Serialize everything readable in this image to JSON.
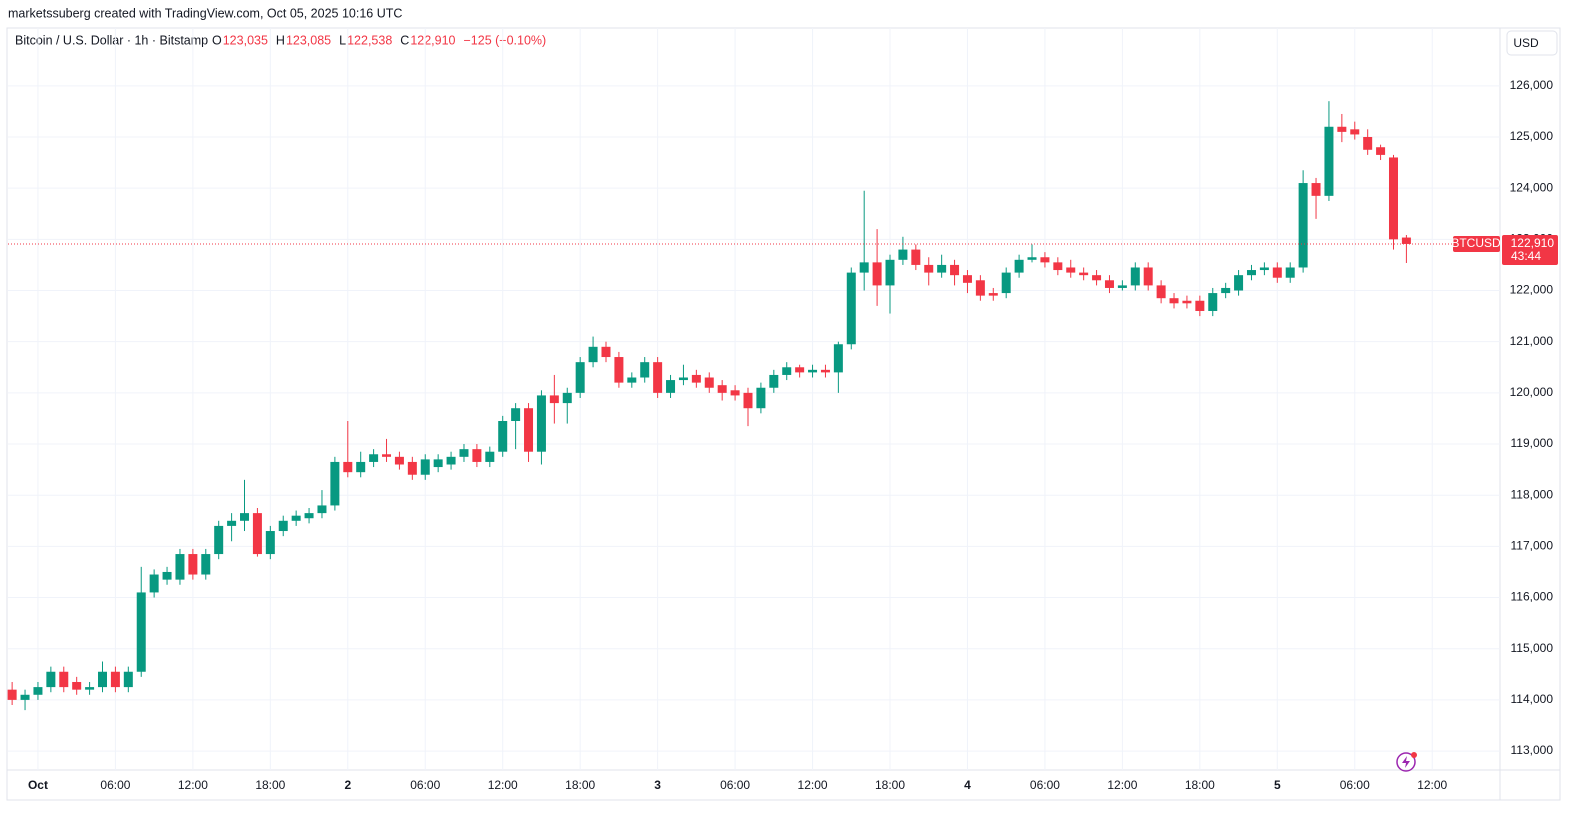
{
  "chart_data": {
    "type": "candlestick",
    "title": "marketssuberg created with TradingView.com, Oct 05, 2025 10:16 UTC",
    "symbol": "Bitcoin / U.S. Dollar · 1h · Bitstamp",
    "ohlc_legend": [
      {
        "key": "O",
        "text": "123,035"
      },
      {
        "key": "H",
        "text": "123,085"
      },
      {
        "key": "L",
        "text": "122,538"
      },
      {
        "key": "C",
        "text": "122,910"
      },
      {
        "key": "",
        "text": "−125 (−0.10%)"
      }
    ],
    "currency": "USD",
    "symbol_tag": "BTCUSD",
    "last_price": {
      "value": 122910,
      "label": "122,910"
    },
    "countdown": "43:44",
    "up_color": "#089981",
    "down_color": "#f23645",
    "grid": true,
    "xlim": [
      -0.32,
      115.25
    ],
    "xticks": [
      {
        "value": 2,
        "label": "Oct"
      },
      {
        "value": 8,
        "label": "06:00"
      },
      {
        "value": 14,
        "label": "12:00"
      },
      {
        "value": 20,
        "label": "18:00"
      },
      {
        "value": 26,
        "label": "2"
      },
      {
        "value": 32,
        "label": "06:00"
      },
      {
        "value": 38,
        "label": "12:00"
      },
      {
        "value": 44,
        "label": "18:00"
      },
      {
        "value": 50,
        "label": "3"
      },
      {
        "value": 56,
        "label": "06:00"
      },
      {
        "value": 62,
        "label": "12:00"
      },
      {
        "value": 68,
        "label": "18:00"
      },
      {
        "value": 74,
        "label": "4"
      },
      {
        "value": 80,
        "label": "06:00"
      },
      {
        "value": 86,
        "label": "12:00"
      },
      {
        "value": 92,
        "label": "18:00"
      },
      {
        "value": 98,
        "label": "5"
      },
      {
        "value": 104,
        "label": "06:00"
      },
      {
        "value": 110,
        "label": "12:00"
      }
    ],
    "ylim": [
      112630,
      127130
    ],
    "yticks": [
      {
        "value": 113000,
        "label": "113,000"
      },
      {
        "value": 114000,
        "label": "114,000"
      },
      {
        "value": 115000,
        "label": "115,000"
      },
      {
        "value": 116000,
        "label": "116,000"
      },
      {
        "value": 117000,
        "label": "117,000"
      },
      {
        "value": 118000,
        "label": "118,000"
      },
      {
        "value": 119000,
        "label": "119,000"
      },
      {
        "value": 120000,
        "label": "120,000"
      },
      {
        "value": 121000,
        "label": "121,000"
      },
      {
        "value": 122000,
        "label": "122,000"
      },
      {
        "value": 123000,
        "label": "123,000"
      },
      {
        "value": 124000,
        "label": "124,000"
      },
      {
        "value": 125000,
        "label": "125,000"
      },
      {
        "value": 126000,
        "label": "126,000"
      }
    ],
    "open": [
      114200,
      114000,
      114100,
      114250,
      114550,
      114350,
      114200,
      114250,
      114550,
      114250,
      114550,
      116100,
      116350,
      116350,
      116850,
      116450,
      116850,
      117400,
      117500,
      117650,
      116850,
      117300,
      117500,
      117550,
      117650,
      117800,
      118650,
      118450,
      118650,
      118800,
      118750,
      118650,
      118400,
      118550,
      118600,
      118750,
      118900,
      118650,
      118850,
      119450,
      119700,
      118850,
      119950,
      119800,
      120000,
      120600,
      120900,
      120700,
      120200,
      120300,
      120600,
      120000,
      120250,
      120350,
      120300,
      120150,
      120050,
      120000,
      119700,
      120100,
      120350,
      120500,
      120400,
      120450,
      120400,
      120950,
      122350,
      122550,
      122100,
      122600,
      122800,
      122500,
      122350,
      122500,
      122300,
      122200,
      121950,
      121950,
      122350,
      122600,
      122650,
      122550,
      122450,
      122350,
      122300,
      122200,
      122050,
      122100,
      122450,
      122100,
      121850,
      121800,
      121800,
      121600,
      121950,
      122000,
      122300,
      122400,
      122450,
      122250,
      122450,
      124100,
      123850,
      125200,
      125150,
      125000,
      124800,
      124600,
      123035
    ],
    "high": [
      114350,
      114200,
      114350,
      114650,
      114650,
      114450,
      114350,
      114750,
      114650,
      114650,
      116600,
      116550,
      116600,
      116950,
      116950,
      116950,
      117500,
      117650,
      118300,
      117750,
      117400,
      117600,
      117700,
      117750,
      118100,
      118750,
      119450,
      118850,
      118900,
      119100,
      118850,
      118750,
      118800,
      118800,
      118850,
      119000,
      119000,
      118950,
      119550,
      119800,
      119800,
      120050,
      120350,
      120100,
      120700,
      121100,
      121000,
      120800,
      120400,
      120700,
      120700,
      120350,
      120550,
      120450,
      120400,
      120250,
      120150,
      120100,
      120200,
      120450,
      120600,
      120550,
      120550,
      120550,
      121000,
      122450,
      123950,
      123200,
      122700,
      123050,
      122900,
      122650,
      122700,
      122600,
      122400,
      122300,
      122050,
      122450,
      122700,
      122900,
      122750,
      122650,
      122600,
      122450,
      122400,
      122300,
      122200,
      122550,
      122550,
      122200,
      121950,
      121900,
      121900,
      122050,
      122150,
      122400,
      122500,
      122550,
      122550,
      122550,
      124350,
      124200,
      125700,
      125450,
      125300,
      125150,
      124850,
      124650,
      123085
    ],
    "low": [
      113900,
      113800,
      114000,
      114150,
      114150,
      114100,
      114100,
      114150,
      114150,
      114150,
      114450,
      116000,
      116250,
      116250,
      116350,
      116350,
      116750,
      117100,
      117300,
      116800,
      116750,
      117200,
      117400,
      117450,
      117550,
      117700,
      118350,
      118350,
      118550,
      118650,
      118500,
      118300,
      118300,
      118450,
      118500,
      118650,
      118550,
      118550,
      118750,
      118900,
      118650,
      118600,
      119400,
      119400,
      119900,
      120500,
      120600,
      120100,
      120100,
      120200,
      119900,
      119900,
      120150,
      120100,
      120000,
      119850,
      119850,
      119350,
      119600,
      120000,
      120250,
      120300,
      120300,
      120300,
      120000,
      120850,
      122000,
      121700,
      121550,
      122500,
      122400,
      122100,
      122250,
      122100,
      121950,
      121800,
      121800,
      121850,
      122250,
      122550,
      122450,
      122300,
      122250,
      122200,
      122100,
      121950,
      122000,
      122000,
      122000,
      121750,
      121650,
      121650,
      121500,
      121500,
      121850,
      121900,
      122200,
      122300,
      122150,
      122150,
      122350,
      123400,
      123750,
      124900,
      124950,
      124650,
      124550,
      122800,
      122538
    ],
    "close": [
      114000,
      114100,
      114250,
      114550,
      114250,
      114200,
      114250,
      114550,
      114250,
      114550,
      116100,
      116450,
      116500,
      116850,
      116450,
      116850,
      117400,
      117500,
      117650,
      116850,
      117300,
      117500,
      117600,
      117650,
      117800,
      118650,
      118450,
      118650,
      118800,
      118750,
      118600,
      118400,
      118700,
      118700,
      118750,
      118900,
      118650,
      118850,
      119450,
      119700,
      118850,
      119950,
      119800,
      120000,
      120600,
      120900,
      120700,
      120200,
      120300,
      120600,
      120000,
      120250,
      120300,
      120200,
      120100,
      120000,
      119950,
      119700,
      120100,
      120350,
      120500,
      120400,
      120450,
      120400,
      120950,
      122350,
      122550,
      122100,
      122600,
      122800,
      122500,
      122350,
      122500,
      122300,
      122150,
      121900,
      121900,
      122350,
      122600,
      122650,
      122550,
      122400,
      122350,
      122300,
      122200,
      122050,
      122100,
      122450,
      122100,
      121850,
      121750,
      121750,
      121600,
      121950,
      122050,
      122300,
      122400,
      122450,
      122250,
      122450,
      124100,
      123850,
      125200,
      125100,
      125050,
      124750,
      124650,
      123000,
      122910
    ]
  }
}
